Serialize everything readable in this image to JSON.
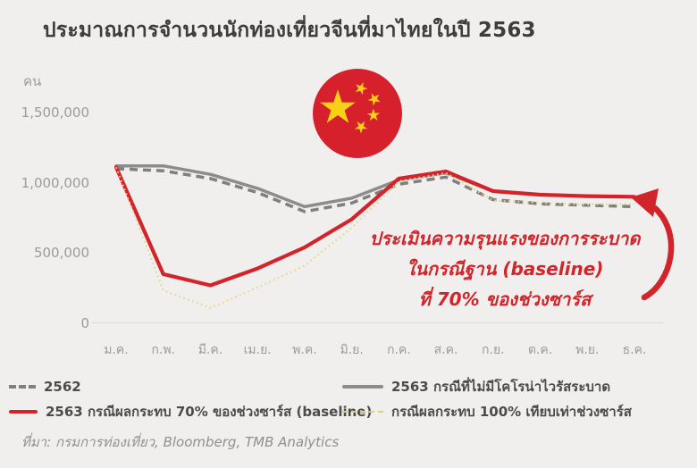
{
  "title": "ประมาณการจำนวนนักท่องเที่ยวจีนที่มาไทยในปี 2563",
  "y_axis": {
    "unit_label": "คน",
    "ticks": [
      {
        "label": "1,500,000",
        "value": 1500000
      },
      {
        "label": "1,000,000",
        "value": 1000000
      },
      {
        "label": "500,000",
        "value": 500000
      },
      {
        "label": "0",
        "value": 0
      }
    ]
  },
  "annotation": {
    "line1": "ประเมินความรุนแรงของการระบาด",
    "line2": "ในกรณีฐาน (baseline)",
    "line3": "ที่ 70% ของช่วงซาร์ส",
    "color": "#d2252b"
  },
  "legend": {
    "items": [
      {
        "label": "2562",
        "color": "#7f7f7f",
        "style": "dashed",
        "width": 4,
        "swatch_w": 30
      },
      {
        "label": "2563 กรณีที่ไม่มีโคโรน่าไวรัสระบาด",
        "color": "#8c8c8c",
        "style": "solid",
        "width": 4,
        "swatch_w": 46
      },
      {
        "label": "2563 กรณีผลกระทบ 70% ของช่วงซาร์ส (baseline)",
        "color": "#d3242c",
        "style": "solid",
        "width": 4,
        "swatch_w": 32
      },
      {
        "label": "กรณีผลกระทบ 100% เทียบเท่าช่วงซาร์ส",
        "color": "#ddd07e",
        "style": "dotted",
        "width": 2,
        "swatch_w": 46
      }
    ]
  },
  "source": "ที่มา: กรมการท่องเที่ยว, Bloomberg, TMB Analytics",
  "flag": {
    "name": "china-flag",
    "circle_color": "#d6202b",
    "star_color": "#f8d014"
  },
  "chart_data": {
    "type": "line",
    "title": "ประมาณการจำนวนนักท่องเที่ยวจีนที่มาไทยในปี 2563",
    "ylabel": "คน",
    "ylim": [
      0,
      1500000
    ],
    "yticks": [
      0,
      500000,
      1000000,
      1500000
    ],
    "grid": false,
    "legend_position": "bottom",
    "categories": [
      "ม.ค.",
      "ก.พ.",
      "มี.ค.",
      "เม.ย.",
      "พ.ค.",
      "มิ.ย.",
      "ก.ค.",
      "ส.ค.",
      "ก.ย.",
      "ต.ค.",
      "พ.ย.",
      "ธ.ค."
    ],
    "series": [
      {
        "name": "2562",
        "color": "#7f7f7f",
        "style": "dashed",
        "width": 3.5,
        "values": [
          1100000,
          1085000,
          1030000,
          930000,
          795000,
          855000,
          990000,
          1040000,
          880000,
          850000,
          840000,
          830000
        ]
      },
      {
        "name": "2563 กรณีที่ไม่มีโคโรน่าไวรัสระบาด",
        "color": "#8c8c8c",
        "style": "solid",
        "width": 3.5,
        "values": [
          1120000,
          1120000,
          1060000,
          960000,
          830000,
          890000,
          1020000,
          1070000,
          940000,
          915000,
          905000,
          900000
        ]
      },
      {
        "name": "2563 กรณีผลกระทบ 70% ของช่วงซาร์ส (baseline)",
        "color": "#d3242c",
        "style": "solid",
        "width": 4.2,
        "values": [
          1110000,
          350000,
          270000,
          390000,
          540000,
          740000,
          1030000,
          1080000,
          940000,
          915000,
          905000,
          900000
        ]
      },
      {
        "name": "กรณีผลกระทบ 100% เทียบเท่าช่วงซาร์ส",
        "color": "#e3d583",
        "style": "dotted",
        "width": 2,
        "values": [
          1110000,
          235000,
          110000,
          255000,
          410000,
          680000,
          1010000,
          1070000,
          875000,
          855000,
          845000,
          850000
        ]
      }
    ]
  }
}
